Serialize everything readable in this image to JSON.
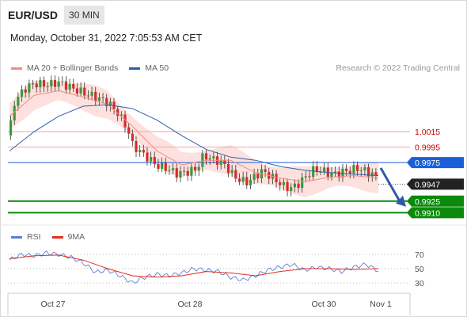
{
  "header": {
    "symbol": "EUR/USD",
    "timeframe_button": "30 MIN",
    "datetime": "Monday, October 31, 2022 7:05:53 AM CET"
  },
  "legend": {
    "items": [
      {
        "label": "MA 20 + Bollinger Bands",
        "color": "#f28b82"
      },
      {
        "label": "MA 50",
        "color": "#2f5ea8"
      }
    ],
    "credit": "Research © 2022 Trading Central"
  },
  "rsi_legend": {
    "items": [
      {
        "label": "RSI",
        "color": "#5b7fd6"
      },
      {
        "label": "9MA",
        "color": "#e0301e"
      }
    ]
  },
  "colors": {
    "bull": "#3a9a3a",
    "bear": "#d62c2c",
    "bollinger_fill": "#fcd9d6",
    "resistance": "#f5a3a3",
    "resistance_text": "#cc0000",
    "pivot": "#1a5fd6",
    "support": "#0b8a0b",
    "last_price_tag": "#222222",
    "arrow": "#2c5aa6"
  },
  "chart_data": [
    {
      "type": "candlestick",
      "title": "EUR/USD",
      "timeframe": "30 MIN",
      "x_ticks": [
        "Oct 27",
        "Oct 28",
        "Oct 30",
        "Nov 1"
      ],
      "ylim": [
        0.9894,
        1.0085
      ],
      "last_price": 0.9947,
      "levels": [
        {
          "value": 1.0015,
          "label": "1.0015",
          "kind": "resistance"
        },
        {
          "value": 0.9995,
          "label": "0.9995",
          "kind": "resistance"
        },
        {
          "value": 0.9975,
          "label": "0.9975",
          "kind": "pivot"
        },
        {
          "value": 0.9925,
          "label": "0.9925",
          "kind": "support"
        },
        {
          "value": 0.991,
          "label": "0.9910",
          "kind": "support"
        }
      ],
      "last_price_label": "0.9947",
      "series": [
        {
          "name": "MA 20 + Bollinger Bands"
        },
        {
          "name": "MA 50"
        }
      ],
      "close_path": [
        [
          0,
          1.001
        ],
        [
          4,
          1.0048
        ],
        [
          12,
          1.0065
        ],
        [
          20,
          1.0072
        ],
        [
          30,
          1.007
        ],
        [
          40,
          1.0074
        ],
        [
          50,
          1.0068
        ],
        [
          60,
          1.0062
        ],
        [
          70,
          1.0058
        ],
        [
          80,
          1.0052
        ],
        [
          88,
          1.004
        ],
        [
          96,
          1.002
        ],
        [
          100,
          1.0
        ],
        [
          106,
          0.9992
        ],
        [
          112,
          0.9985
        ],
        [
          120,
          0.9975
        ],
        [
          128,
          0.9972
        ],
        [
          136,
          0.9966
        ],
        [
          144,
          0.9968
        ],
        [
          152,
          0.9972
        ],
        [
          158,
          0.999
        ],
        [
          164,
          0.9985
        ],
        [
          170,
          0.9982
        ],
        [
          176,
          0.9975
        ],
        [
          182,
          0.9962
        ],
        [
          188,
          0.9955
        ],
        [
          194,
          0.9952
        ],
        [
          200,
          0.996
        ],
        [
          206,
          0.9965
        ],
        [
          212,
          0.9958
        ],
        [
          218,
          0.995
        ],
        [
          224,
          0.9942
        ],
        [
          230,
          0.994
        ],
        [
          236,
          0.9946
        ],
        [
          242,
          0.9955
        ],
        [
          248,
          0.9962
        ],
        [
          254,
          0.996
        ],
        [
          260,
          0.9956
        ],
        [
          266,
          0.9955
        ],
        [
          272,
          0.9958
        ],
        [
          278,
          0.996
        ],
        [
          284,
          0.9962
        ],
        [
          290,
          0.9958
        ],
        [
          296,
          0.9955
        ],
        [
          300,
          0.9947
        ]
      ],
      "ma20_path": [
        [
          0,
          1.0035
        ],
        [
          20,
          1.0062
        ],
        [
          40,
          1.0068
        ],
        [
          60,
          1.006
        ],
        [
          80,
          1.005
        ],
        [
          100,
          1.0022
        ],
        [
          120,
          0.999
        ],
        [
          140,
          0.9972
        ],
        [
          160,
          0.9978
        ],
        [
          180,
          0.9978
        ],
        [
          200,
          0.9962
        ],
        [
          220,
          0.9955
        ],
        [
          240,
          0.995
        ],
        [
          260,
          0.9956
        ],
        [
          280,
          0.9958
        ],
        [
          300,
          0.9955
        ]
      ],
      "ma50_path": [
        [
          0,
          0.999
        ],
        [
          20,
          1.0015
        ],
        [
          40,
          1.0035
        ],
        [
          60,
          1.0048
        ],
        [
          80,
          1.005
        ],
        [
          100,
          1.0045
        ],
        [
          120,
          1.003
        ],
        [
          140,
          1.001
        ],
        [
          160,
          0.9992
        ],
        [
          180,
          0.9982
        ],
        [
          200,
          0.9978
        ],
        [
          220,
          0.997
        ],
        [
          240,
          0.9965
        ],
        [
          260,
          0.9962
        ],
        [
          280,
          0.996
        ],
        [
          300,
          0.9958
        ]
      ],
      "band_width": 0.0016
    },
    {
      "type": "line",
      "title": "RSI",
      "series": [
        {
          "name": "RSI"
        },
        {
          "name": "9MA"
        }
      ],
      "y_ticks": [
        70,
        50,
        30
      ],
      "ylim": [
        20,
        80
      ],
      "rsi_path": [
        [
          0,
          62
        ],
        [
          10,
          70
        ],
        [
          20,
          68
        ],
        [
          30,
          72
        ],
        [
          40,
          70
        ],
        [
          50,
          66
        ],
        [
          60,
          58
        ],
        [
          70,
          45
        ],
        [
          80,
          48
        ],
        [
          90,
          40
        ],
        [
          100,
          30
        ],
        [
          110,
          38
        ],
        [
          120,
          42
        ],
        [
          130,
          40
        ],
        [
          140,
          44
        ],
        [
          150,
          50
        ],
        [
          160,
          48
        ],
        [
          170,
          46
        ],
        [
          180,
          38
        ],
        [
          190,
          34
        ],
        [
          200,
          40
        ],
        [
          210,
          48
        ],
        [
          220,
          52
        ],
        [
          230,
          56
        ],
        [
          240,
          48
        ],
        [
          250,
          52
        ],
        [
          260,
          50
        ],
        [
          270,
          46
        ],
        [
          280,
          52
        ],
        [
          290,
          56
        ],
        [
          300,
          47
        ]
      ],
      "ma_path": [
        [
          0,
          64
        ],
        [
          20,
          68
        ],
        [
          40,
          69
        ],
        [
          60,
          62
        ],
        [
          80,
          50
        ],
        [
          100,
          40
        ],
        [
          120,
          38
        ],
        [
          140,
          40
        ],
        [
          160,
          46
        ],
        [
          180,
          44
        ],
        [
          200,
          40
        ],
        [
          220,
          46
        ],
        [
          240,
          50
        ],
        [
          260,
          50
        ],
        [
          280,
          49
        ],
        [
          300,
          50
        ]
      ]
    }
  ]
}
